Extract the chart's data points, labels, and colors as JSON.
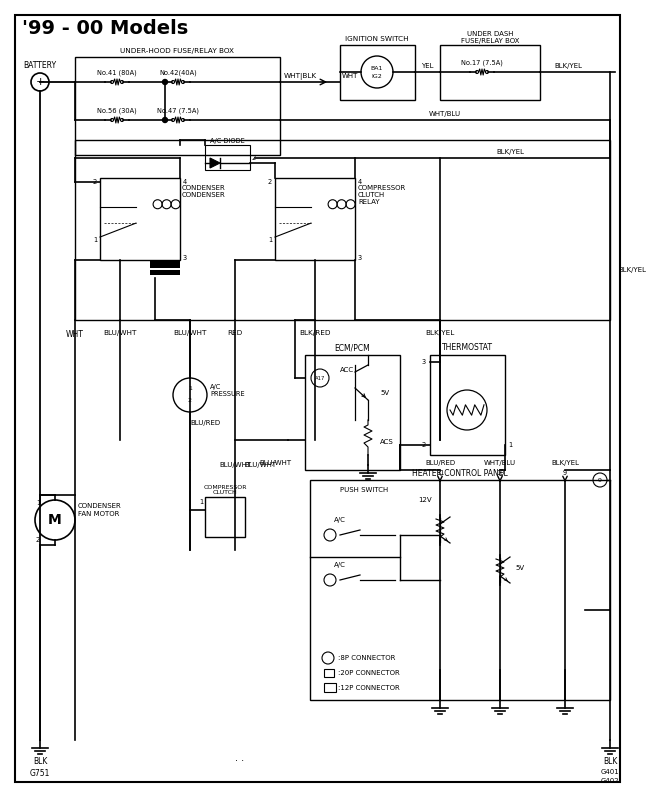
{
  "title": "'99 - 00 Models",
  "bg_color": "#ffffff",
  "lc": "#000000",
  "components": {
    "battery": "BATTERY",
    "under_hood": "UNDER-HOOD FUSE/RELAY BOX",
    "ignition": "IGNITION SWITCH",
    "under_dash": "UNDER DASH\nFUSE/RELAY BOX",
    "condenser_relay": "CONDENSER\nCONDENSER",
    "compressor_relay": "COMPRESSOR\nCLUTCH\nRELAY",
    "ac_diode": "A/C DIODE",
    "ac_pressure": "A/C\nPRESSURE",
    "ecm_pcm": "ECM/PCM",
    "thermostat": "THERMOSTAT",
    "condenser_fan": "CONDENSER\nFAN MOTOR",
    "compressor_clutch": "COMPRESSOR\nCLUTCH",
    "heater_control": "HEATER CONTROL PANEL",
    "push_switch": "PUSH SWITCH",
    "g751": "G751",
    "g401": "G401",
    "g402": "G402",
    "no41": "No.41 (80A)",
    "no42": "No.42(40A)",
    "no56": "No.56 (30A)",
    "no47": "No.47 (7.5A)",
    "no17": "No.17 (7.5A)",
    "conn_8p": ":8P CONNECTOR",
    "conn_20p": ":20P CONNECTOR",
    "conn_12p": ":12P CONNECTOR"
  }
}
